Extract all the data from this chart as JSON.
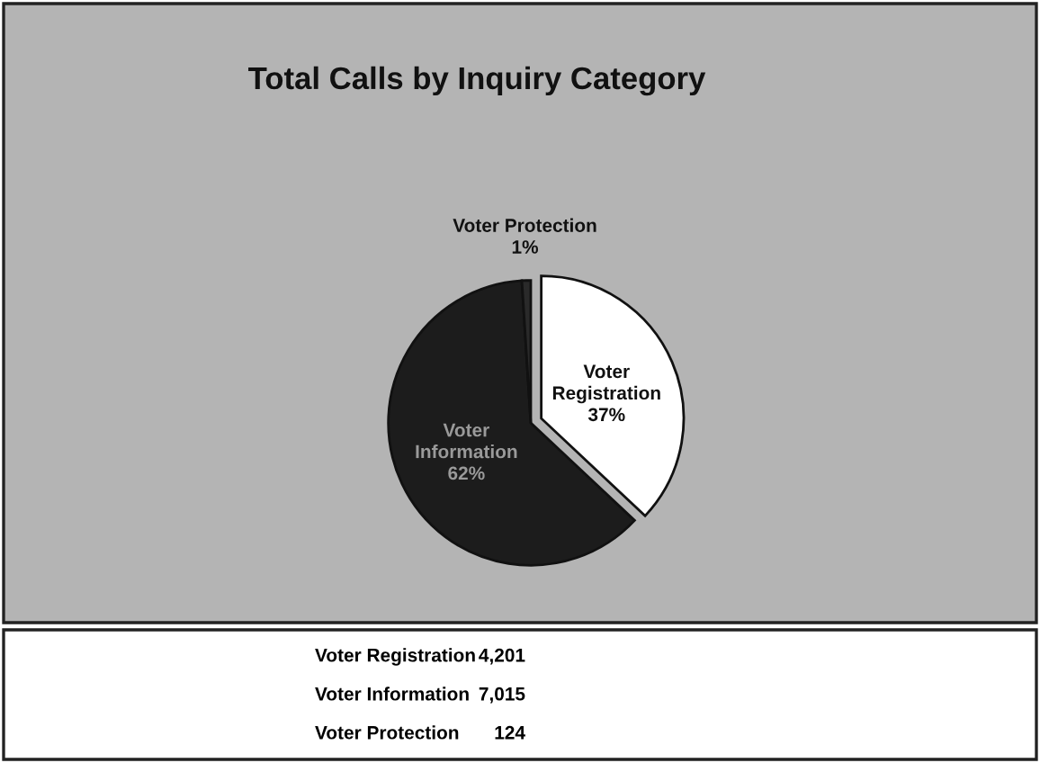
{
  "chart_data": {
    "type": "pie",
    "title": "Total Calls by Inquiry Category",
    "categories": [
      "Voter Registration",
      "Voter Information",
      "Voter Protection"
    ],
    "values": [
      37,
      62,
      1
    ],
    "value_labels": [
      "37%",
      "62%",
      "1%"
    ],
    "colors": [
      "#ffffff",
      "#1c1c1c",
      "#2a2a2a"
    ],
    "annotations": [
      "4,201",
      "7,015",
      "124"
    ]
  }
}
